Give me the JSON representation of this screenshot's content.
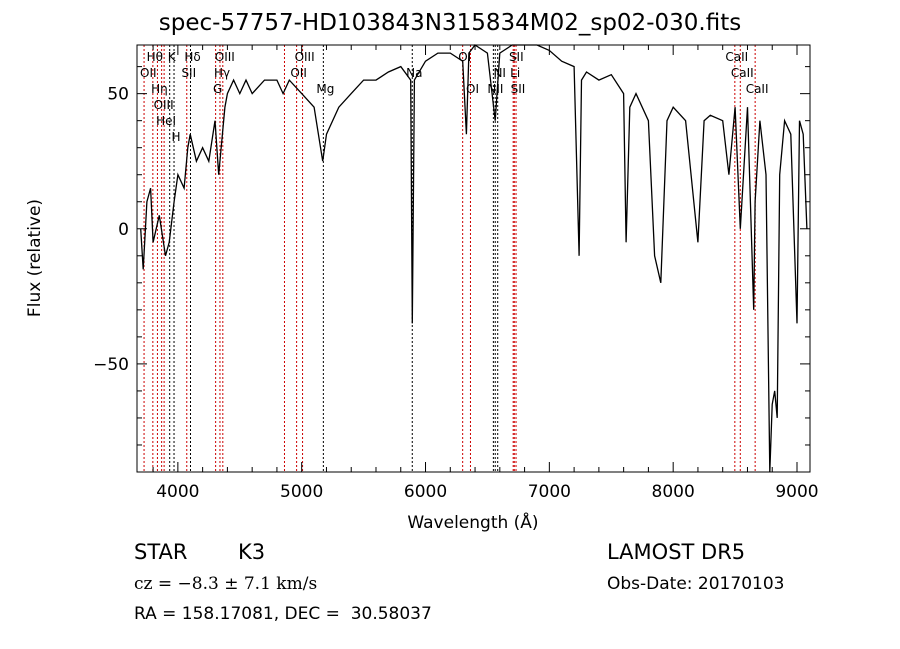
{
  "chart_data": {
    "type": "line",
    "title": "spec-57757-HD103843N315834M02_sp02-030.fits",
    "xlabel": "Wavelength (Å)",
    "ylabel": "Flux (relative)",
    "xlim": [
      3670,
      9105
    ],
    "ylim": [
      -90,
      68
    ],
    "xticks": [
      4000,
      5000,
      6000,
      7000,
      8000,
      9000
    ],
    "xtick_labels": [
      "4000",
      "5000",
      "6000",
      "7000",
      "8000",
      "9000"
    ],
    "yticks": [
      -50,
      0,
      50
    ],
    "ytick_labels": [
      "−50",
      "0",
      "50"
    ],
    "grid": false,
    "series": [
      {
        "name": "spectrum",
        "color": "#000000",
        "x": [
          3700,
          3720,
          3750,
          3780,
          3800,
          3850,
          3900,
          3930,
          3970,
          4000,
          4050,
          4080,
          4100,
          4150,
          4200,
          4250,
          4300,
          4330,
          4380,
          4400,
          4450,
          4500,
          4550,
          4600,
          4700,
          4800,
          4850,
          4900,
          5000,
          5100,
          5170,
          5200,
          5300,
          5400,
          5500,
          5600,
          5700,
          5800,
          5880,
          5893,
          5910,
          6000,
          6100,
          6200,
          6300,
          6330,
          6350,
          6400,
          6500,
          6563,
          6600,
          6700,
          6800,
          6900,
          7000,
          7100,
          7200,
          7240,
          7260,
          7300,
          7400,
          7500,
          7600,
          7620,
          7650,
          7700,
          7800,
          7850,
          7900,
          7950,
          8000,
          8100,
          8200,
          8250,
          8300,
          8400,
          8450,
          8500,
          8542,
          8600,
          8650,
          8662,
          8700,
          8750,
          8780,
          8800,
          8820,
          8840,
          8860,
          8900,
          8950,
          9000,
          9020,
          9050,
          9080
        ],
        "y": [
          0,
          -15,
          10,
          15,
          -5,
          5,
          -10,
          -5,
          10,
          20,
          15,
          30,
          35,
          25,
          30,
          25,
          40,
          20,
          45,
          50,
          55,
          50,
          55,
          50,
          55,
          55,
          50,
          55,
          50,
          45,
          25,
          35,
          45,
          50,
          55,
          55,
          58,
          60,
          55,
          -35,
          55,
          62,
          65,
          65,
          62,
          35,
          65,
          68,
          65,
          40,
          65,
          70,
          68,
          68,
          66,
          62,
          60,
          -10,
          55,
          58,
          55,
          57,
          50,
          -5,
          45,
          50,
          40,
          -10,
          -20,
          40,
          45,
          40,
          -5,
          40,
          42,
          40,
          20,
          45,
          0,
          45,
          -30,
          10,
          40,
          20,
          -90,
          -65,
          -60,
          -70,
          20,
          40,
          35,
          -35,
          40,
          35,
          0
        ]
      }
    ],
    "lines": [
      {
        "w": 3727,
        "label": "OII",
        "row": 2,
        "color": "#cc0000"
      },
      {
        "w": 3798,
        "label": "Hθ",
        "row": 1,
        "color": "#cc0000"
      },
      {
        "w": 3835,
        "label": "Hη",
        "row": 3,
        "color": "#cc0000"
      },
      {
        "w": 3869,
        "label": "OIII",
        "row": 3,
        "color": "#cc0000"
      },
      {
        "w": 3889,
        "label": "HeI",
        "row": 2,
        "color": "#cc0000"
      },
      {
        "w": 3934,
        "label": "K",
        "row": 1,
        "color": "#000000"
      },
      {
        "w": 3969,
        "label": "H",
        "row": 3,
        "color": "#000000"
      },
      {
        "w": 4072,
        "label": "SII",
        "row": 2,
        "color": "#cc0000"
      },
      {
        "w": 4102,
        "label": "Hδ",
        "row": 1,
        "color": "#000000"
      },
      {
        "w": 4305,
        "label": "G",
        "row": 3,
        "color": "#cc0000"
      },
      {
        "w": 4340,
        "label": "Hγ",
        "row": 2,
        "color": "#cc0000"
      },
      {
        "w": 4363,
        "label": "OIII",
        "row": 1,
        "color": "#cc0000"
      },
      {
        "w": 4861,
        "label": "",
        "row": 0,
        "color": "#cc0000"
      },
      {
        "w": 4959,
        "label": "OII",
        "row": 2,
        "color": "#cc0000"
      },
      {
        "w": 5007,
        "label": "OIII",
        "row": 1,
        "color": "#cc0000"
      },
      {
        "w": 5175,
        "label": "Mg",
        "row": 3,
        "color": "#000000"
      },
      {
        "w": 5893,
        "label": "Na",
        "row": 2,
        "color": "#000000"
      },
      {
        "w": 6300,
        "label": "OI",
        "row": 1,
        "color": "#cc0000"
      },
      {
        "w": 6363,
        "label": "OI",
        "row": 3,
        "color": "#cc0000"
      },
      {
        "w": 6548,
        "label": "NII",
        "row": 3,
        "color": "#000000"
      },
      {
        "w": 6563,
        "label": "",
        "row": 0,
        "color": "#000000"
      },
      {
        "w": 6583,
        "label": "NI",
        "row": 2,
        "color": "#000000"
      },
      {
        "w": 6708,
        "label": "Li",
        "row": 2,
        "color": "#cc0000"
      },
      {
        "w": 6717,
        "label": "SII",
        "row": 1,
        "color": "#cc0000"
      },
      {
        "w": 6731,
        "label": "SII",
        "row": 3,
        "color": "#cc0000"
      },
      {
        "w": 8498,
        "label": "CaII",
        "row": 1,
        "color": "#cc0000"
      },
      {
        "w": 8542,
        "label": "CaII",
        "row": 2,
        "color": "#cc0000"
      },
      {
        "w": 8662,
        "label": "CaII",
        "row": 3,
        "color": "#cc0000"
      }
    ]
  },
  "info": {
    "object": "STAR",
    "subclass": "K3",
    "cz": "cz = −8.3 ± 7.1 km/s",
    "radec": "RA = 158.17081, DEC =  30.58037",
    "survey": "LAMOST DR5",
    "obs_date": "Obs-Date: 20170103"
  }
}
